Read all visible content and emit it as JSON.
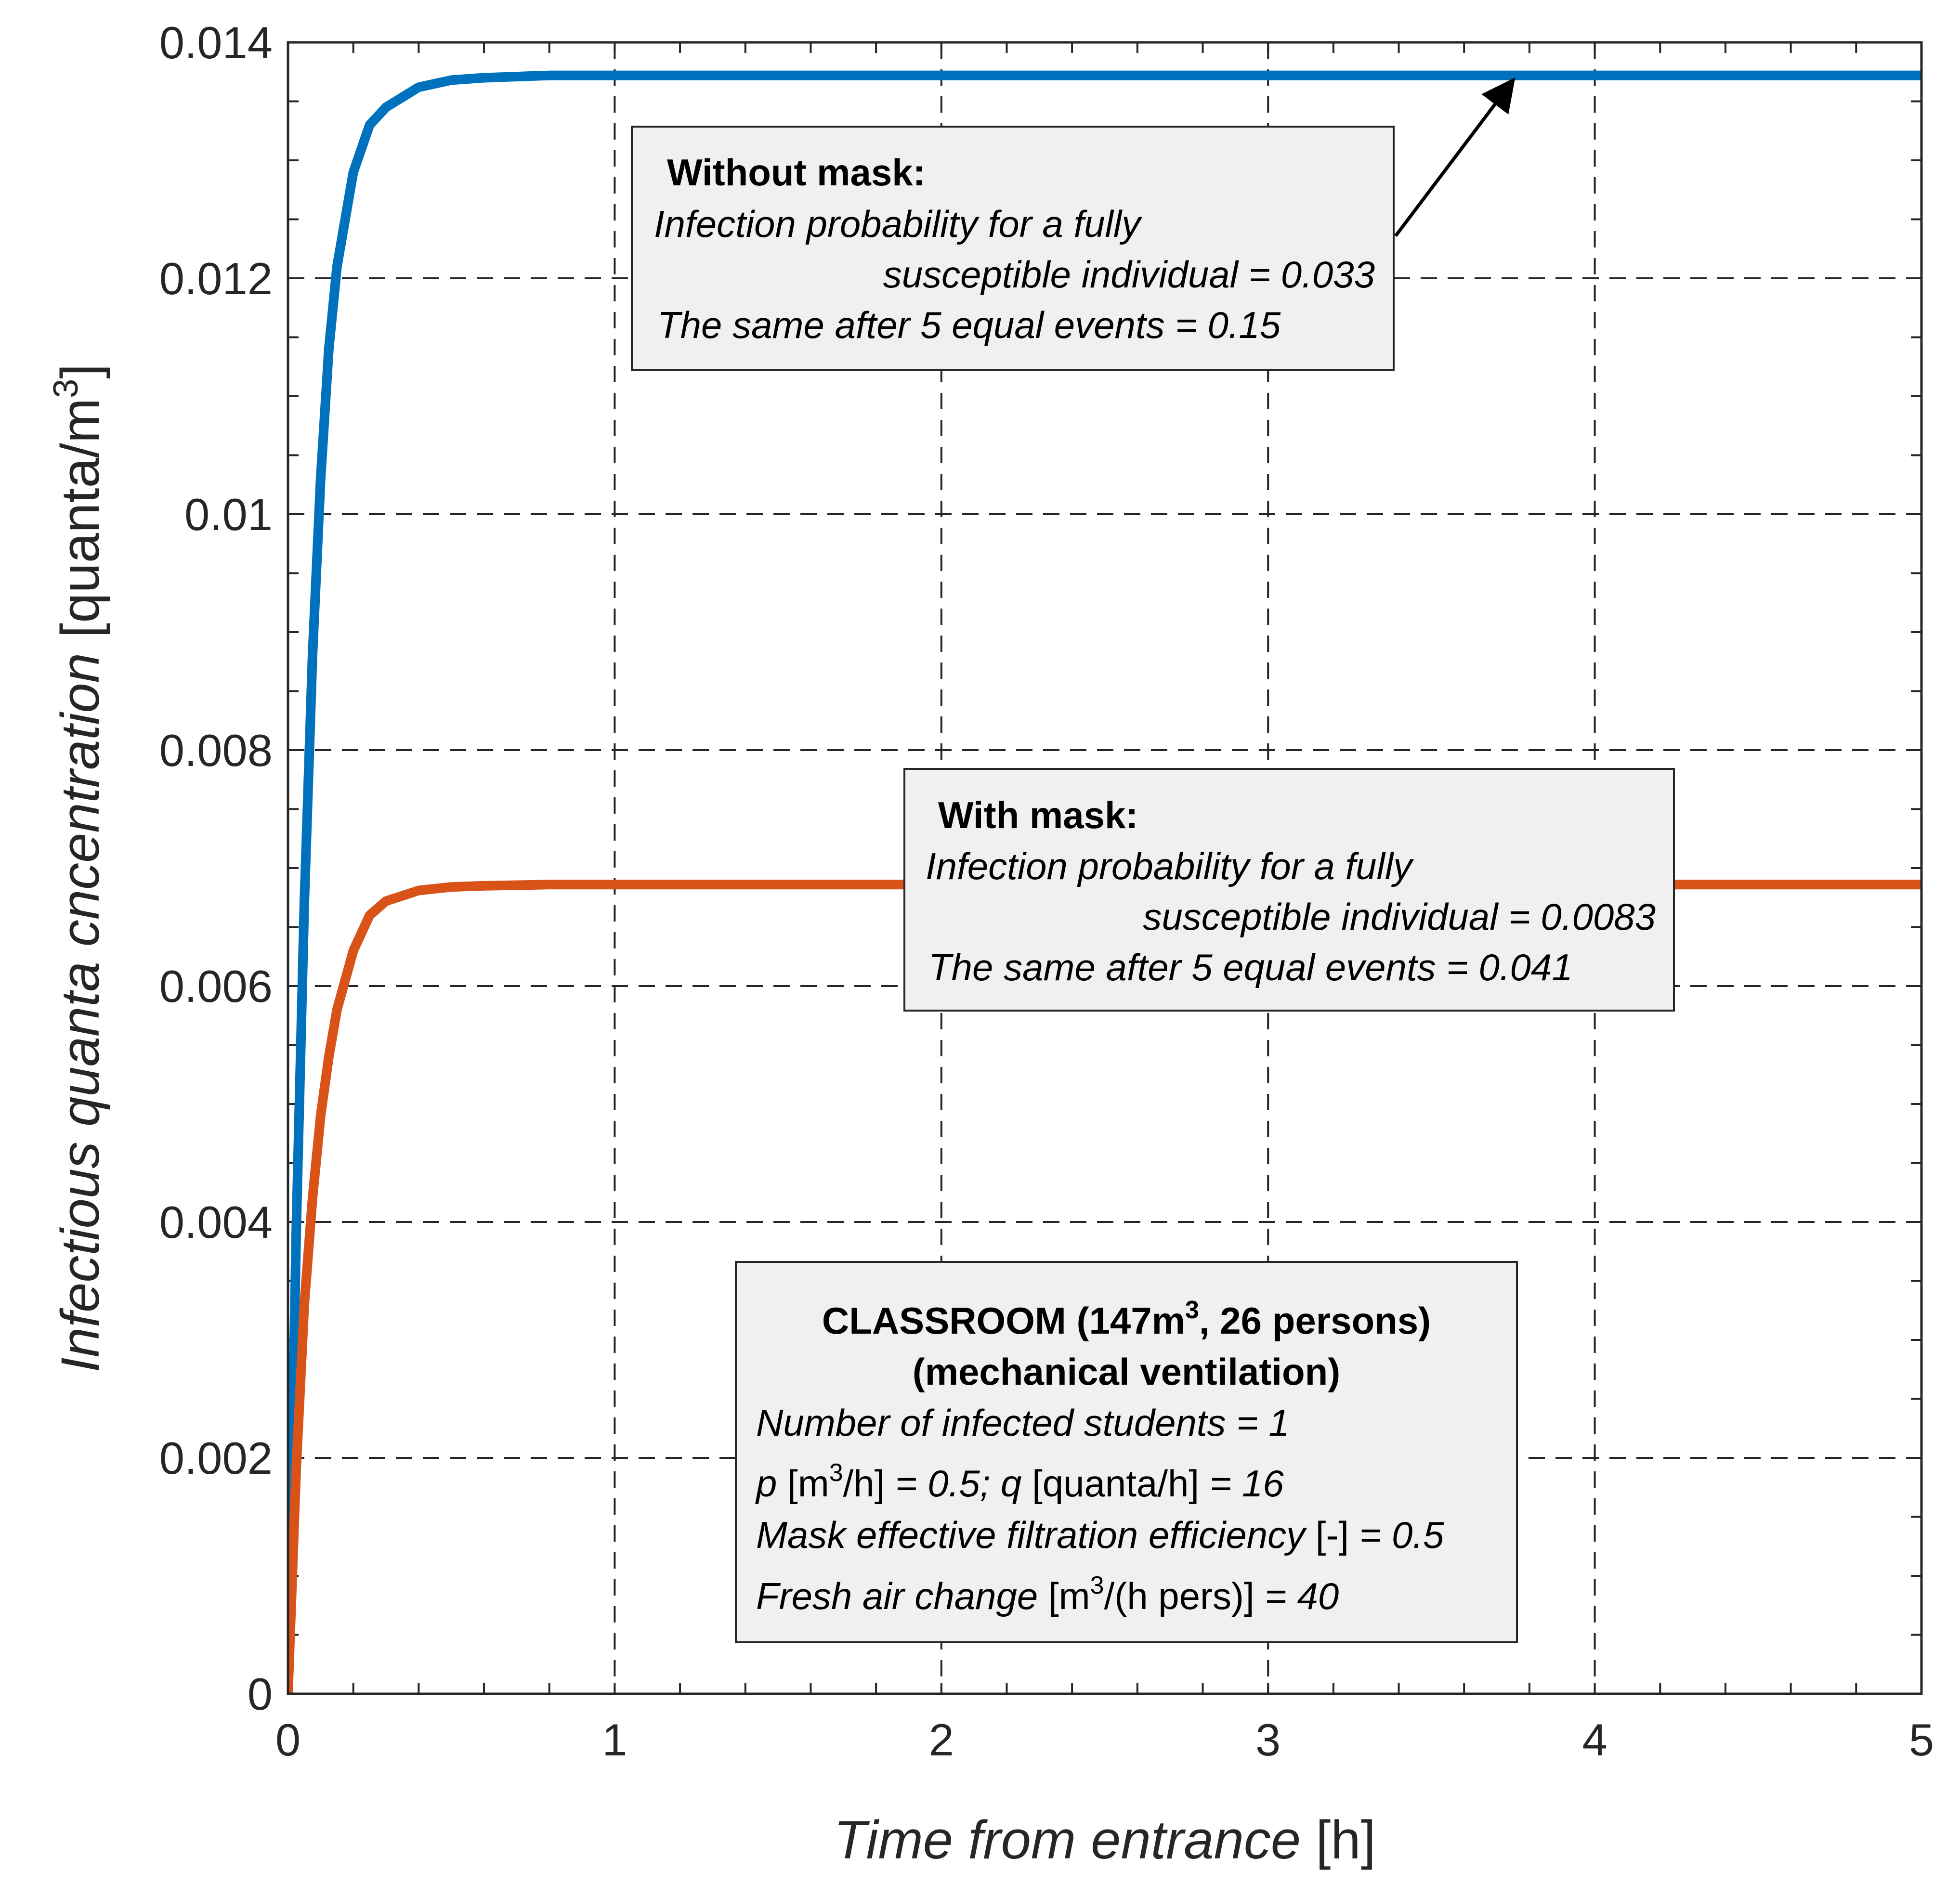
{
  "chart_data": {
    "type": "line",
    "xlabel": {
      "italic": "Time from entrance",
      "rest": " [h]"
    },
    "ylabel": {
      "italic": "Infectious quanta cncentration",
      "rest": " [quanta/m",
      "sup": "3",
      "close": "]"
    },
    "xlim": [
      0,
      5
    ],
    "ylim": [
      0,
      0.014
    ],
    "xticks": [
      0,
      1,
      2,
      3,
      4,
      5
    ],
    "xtick_labels": [
      "0",
      "1",
      "2",
      "3",
      "4",
      "5"
    ],
    "yticks": [
      0,
      0.002,
      0.004,
      0.006,
      0.008,
      0.01,
      0.012,
      0.014
    ],
    "ytick_labels": [
      "0",
      "0.002",
      "0.004",
      "0.006",
      "0.008",
      "0.01",
      "0.012",
      "0.014"
    ],
    "grid": true,
    "series": [
      {
        "color": "#0072BD",
        "x": [
          0,
          0.025,
          0.05,
          0.075,
          0.1,
          0.125,
          0.15,
          0.2,
          0.25,
          0.3,
          0.4,
          0.5,
          0.6,
          0.8,
          1.0,
          2.0,
          3.0,
          4.0,
          5.0
        ],
        "values": [
          0,
          0.0039,
          0.0067,
          0.0088,
          0.0103,
          0.0114,
          0.0121,
          0.0129,
          0.0133,
          0.01345,
          0.01362,
          0.01368,
          0.0137,
          0.01372,
          0.01372,
          0.01372,
          0.01372,
          0.01372,
          0.01372
        ]
      },
      {
        "color": "#D95319",
        "x": [
          0,
          0.025,
          0.05,
          0.075,
          0.1,
          0.125,
          0.15,
          0.2,
          0.25,
          0.3,
          0.4,
          0.5,
          0.6,
          0.8,
          1.0,
          2.0,
          3.0,
          4.0,
          5.0
        ],
        "values": [
          0,
          0.0019,
          0.0033,
          0.0042,
          0.0049,
          0.0054,
          0.0058,
          0.0063,
          0.0066,
          0.00672,
          0.00681,
          0.00684,
          0.00685,
          0.00686,
          0.00686,
          0.00686,
          0.00686,
          0.00686,
          0.00686
        ]
      }
    ]
  },
  "annotations": {
    "without_mask": {
      "title": "Without mask:",
      "line1": "Infection probability for a fully",
      "line2": "susceptible individual  = 0.033",
      "line3": "The same after 5 equal events  = 0.15"
    },
    "with_mask": {
      "title": "With mask:",
      "line1": "Infection probability for a fully",
      "line2": "susceptible individual  = 0.0083",
      "line3": "The same after 5 equal events  = 0.041"
    },
    "classroom": {
      "title_a": "CLASSROOM (147m",
      "title_sup": "3",
      "title_b": ", 26 persons)",
      "subtitle": "(mechanical ventilation)",
      "line1": "Number of infected students = 1",
      "l2_p": "p",
      "l2_a": " [m",
      "l2_sup": "3",
      "l2_b": "/h]",
      "l2_c": " = 0.5; ",
      "l2_q": "q",
      "l2_d": " [quanta/h]",
      "l2_e": " = 16",
      "l3_a": "Mask effective filtration efficiency",
      "l3_b": " [-]",
      "l3_c": " = 0.5",
      "l4_a": "Fresh air change",
      "l4_b": " [m",
      "l4_sup": "3",
      "l4_c": "/(h pers)]",
      "l4_d": " = 40"
    }
  }
}
